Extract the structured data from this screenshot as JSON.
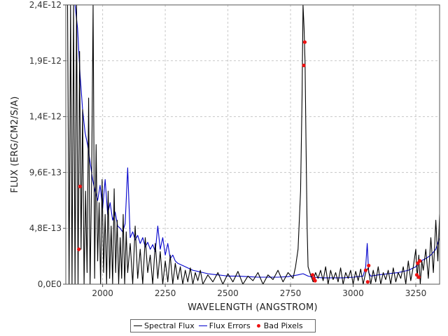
{
  "chart_data": {
    "type": "line",
    "xlabel": "WAVELENGTH (ANGSTROM)",
    "ylabel": "FLUX (ERG/CM2/S/A)",
    "xlim": [
      1853,
      3345
    ],
    "ylim": [
      0,
      2.4e-12
    ],
    "x_ticks": [
      2000,
      2250,
      2500,
      2750,
      3000,
      3250
    ],
    "x_tick_labels": [
      "2000",
      "2250",
      "2500",
      "2750",
      "3000",
      "3250"
    ],
    "y_ticks": [
      0,
      4.8e-13,
      9.6e-13,
      1.44e-12,
      1.92e-12,
      2.4e-12
    ],
    "y_tick_labels": [
      "0,0E0",
      "4,8E-13",
      "9,6E-13",
      "1,4E-12",
      "1,9E-12",
      "2,4E-12"
    ],
    "grid": true,
    "legend_position": "bottom",
    "colors": {
      "flux": "#000000",
      "errors": "#0000cc",
      "bad_pixels": "#ee1111",
      "grid": "#c8c8c8"
    },
    "series": [
      {
        "name": "Spectral Flux",
        "color": "#000000",
        "x": [
          1860,
          1866,
          1872,
          1878,
          1884,
          1890,
          1896,
          1902,
          1908,
          1914,
          1920,
          1926,
          1932,
          1938,
          1944,
          1950,
          1956,
          1962,
          1968,
          1974,
          1980,
          1986,
          1992,
          1998,
          2004,
          2010,
          2016,
          2022,
          2028,
          2034,
          2040,
          2046,
          2052,
          2058,
          2064,
          2070,
          2076,
          2082,
          2088,
          2094,
          2100,
          2110,
          2120,
          2130,
          2140,
          2150,
          2160,
          2170,
          2180,
          2190,
          2200,
          2210,
          2220,
          2230,
          2240,
          2250,
          2260,
          2270,
          2280,
          2290,
          2300,
          2310,
          2320,
          2330,
          2340,
          2350,
          2360,
          2370,
          2380,
          2390,
          2400,
          2420,
          2440,
          2460,
          2480,
          2500,
          2520,
          2540,
          2560,
          2580,
          2600,
          2620,
          2640,
          2660,
          2680,
          2700,
          2720,
          2740,
          2760,
          2770,
          2780,
          2790,
          2796,
          2800,
          2804,
          2808,
          2812,
          2816,
          2820,
          2830,
          2840,
          2850,
          2860,
          2870,
          2880,
          2890,
          2900,
          2910,
          2920,
          2930,
          2940,
          2950,
          2960,
          2970,
          2980,
          2990,
          3000,
          3010,
          3020,
          3030,
          3040,
          3050,
          3060,
          3070,
          3080,
          3090,
          3100,
          3110,
          3120,
          3130,
          3140,
          3150,
          3160,
          3170,
          3180,
          3190,
          3200,
          3210,
          3220,
          3230,
          3240,
          3250,
          3256,
          3262,
          3268,
          3274,
          3280,
          3290,
          3300,
          3310,
          3320,
          3330,
          3338,
          3345
        ],
        "y": [
          2.4e-12,
          0,
          2.4e-12,
          0,
          2.4e-12,
          0,
          2.4e-12,
          0,
          2e-12,
          3e-13,
          1.5e-12,
          0,
          8e-13,
          1e-13,
          1.6e-12,
          0,
          9e-13,
          2.4e-12,
          5e-14,
          1.2e-12,
          2e-13,
          7e-13,
          0,
          9e-13,
          1e-13,
          6e-13,
          0,
          8e-13,
          5e-14,
          5e-13,
          0,
          8.2e-13,
          1e-13,
          5.5e-13,
          0,
          4e-13,
          5e-14,
          6e-13,
          0,
          4.5e-13,
          1e-13,
          3.5e-13,
          0,
          5e-13,
          5e-14,
          3e-13,
          0,
          4e-13,
          1e-13,
          2.5e-13,
          0,
          3.5e-13,
          5e-14,
          2.8e-13,
          0,
          2e-13,
          2e-14,
          2.5e-13,
          0,
          1.8e-13,
          4e-14,
          1.5e-13,
          0,
          1.2e-13,
          2e-14,
          1.4e-13,
          0,
          1e-13,
          3e-14,
          1.2e-13,
          0,
          8e-14,
          2e-14,
          1e-13,
          0,
          9e-14,
          2e-14,
          1.1e-13,
          0,
          7e-14,
          3e-14,
          1e-13,
          0,
          8e-14,
          4e-14,
          1.2e-13,
          2e-14,
          1e-13,
          5e-14,
          1.5e-13,
          3e-13,
          8e-13,
          1.6e-12,
          2.4e-12,
          2.2e-12,
          1.9e-12,
          1.2e-12,
          5e-13,
          1.5e-13,
          8e-14,
          2e-14,
          1e-13,
          5e-14,
          1.2e-13,
          3e-14,
          1.5e-13,
          0,
          1.2e-13,
          4e-14,
          1e-13,
          2e-14,
          1.4e-13,
          0,
          1e-13,
          5e-14,
          1.2e-13,
          0,
          1.1e-13,
          3e-14,
          1.3e-13,
          0,
          1e-13,
          1.4e-13,
          0,
          1.2e-13,
          2e-14,
          1.5e-13,
          0,
          1e-13,
          4e-14,
          1.2e-13,
          0,
          1.4e-13,
          2e-14,
          1e-13,
          5e-14,
          1.5e-13,
          0,
          2e-13,
          3e-14,
          1.5e-13,
          3e-13,
          5e-14,
          2.5e-13,
          0,
          2e-13,
          1.2e-13,
          3e-13,
          5e-14,
          4e-13,
          1e-13,
          5.5e-13,
          2e-13,
          6e-13
        ]
      },
      {
        "name": "Flux Errors",
        "color": "#0000cc",
        "x": [
          1860,
          1870,
          1880,
          1890,
          1900,
          1910,
          1920,
          1930,
          1940,
          1950,
          1960,
          1970,
          1980,
          1990,
          2000,
          2010,
          2020,
          2030,
          2040,
          2050,
          2060,
          2070,
          2080,
          2090,
          2100,
          2110,
          2120,
          2130,
          2140,
          2150,
          2160,
          2170,
          2180,
          2190,
          2200,
          2210,
          2220,
          2230,
          2240,
          2250,
          2260,
          2270,
          2280,
          2290,
          2300,
          2320,
          2340,
          2360,
          2380,
          2400,
          2420,
          2440,
          2460,
          2480,
          2500,
          2540,
          2580,
          2620,
          2660,
          2700,
          2740,
          2780,
          2800,
          2820,
          2840,
          2880,
          2920,
          2960,
          3000,
          3040,
          3050,
          3056,
          3062,
          3070,
          3100,
          3140,
          3180,
          3220,
          3250,
          3270,
          3290,
          3310,
          3330,
          3345
        ],
        "y": [
          2.4e-12,
          2.4e-12,
          2.4e-12,
          2.4e-12,
          2.2e-12,
          1.8e-12,
          1.5e-12,
          1.3e-12,
          1.2e-12,
          1.05e-12,
          9e-13,
          8e-13,
          7.2e-13,
          8.5e-13,
          6.5e-13,
          9e-13,
          6e-13,
          7e-13,
          5.5e-13,
          6.2e-13,
          5e-13,
          4.8e-13,
          4.5e-13,
          5.2e-13,
          1e-12,
          4e-13,
          4.5e-13,
          3.8e-13,
          4.2e-13,
          3.5e-13,
          4e-13,
          3.2e-13,
          3.6e-13,
          3e-13,
          3.4e-13,
          2.8e-13,
          5e-13,
          3e-13,
          4e-13,
          2.5e-13,
          3.5e-13,
          2.2e-13,
          2.5e-13,
          2e-13,
          1.8e-13,
          1.6e-13,
          1.4e-13,
          1.2e-13,
          1.1e-13,
          1e-13,
          9e-14,
          8.5e-14,
          8e-14,
          7.5e-14,
          7e-14,
          7e-14,
          6.5e-14,
          6e-14,
          6e-14,
          6e-14,
          6.5e-14,
          8e-14,
          9e-14,
          7e-14,
          6e-14,
          5.5e-14,
          5.5e-14,
          5.5e-14,
          6e-14,
          7e-14,
          1.5e-13,
          3.5e-13,
          1e-13,
          7e-14,
          8e-14,
          9e-14,
          1e-13,
          1.2e-13,
          1.5e-13,
          2e-13,
          2.2e-13,
          2.5e-13,
          3e-13,
          4e-13
        ]
      },
      {
        "name": "Bad Pixels",
        "color": "#ee1111",
        "x": [
          1905,
          1910,
          2803,
          2807,
          2838,
          2843,
          2848,
          3050,
          3058,
          3062,
          3254,
          3258,
          3262,
          3266
        ],
        "y": [
          3e-13,
          8.4e-13,
          1.88e-12,
          2.08e-12,
          8e-14,
          5e-14,
          3e-14,
          1.2e-13,
          2e-14,
          1.6e-13,
          8e-14,
          1.8e-13,
          6e-14,
          2e-13
        ]
      }
    ]
  }
}
